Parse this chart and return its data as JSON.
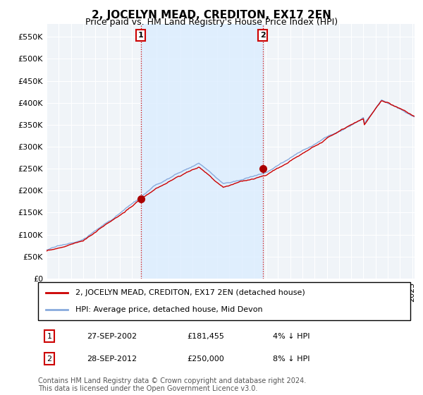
{
  "title": "2, JOCELYN MEAD, CREDITON, EX17 2EN",
  "subtitle": "Price paid vs. HM Land Registry's House Price Index (HPI)",
  "ytick_values": [
    0,
    50000,
    100000,
    150000,
    200000,
    250000,
    300000,
    350000,
    400000,
    450000,
    500000,
    550000
  ],
  "ylim": [
    0,
    580000
  ],
  "xlim_start": 1995.0,
  "xlim_end": 2025.2,
  "purchase1": {
    "date": 2002.74,
    "price": 181455,
    "label": "1",
    "hpi_diff": "4% ↓ HPI",
    "date_str": "27-SEP-2002",
    "price_str": "£181,455"
  },
  "purchase2": {
    "date": 2012.74,
    "price": 250000,
    "label": "2",
    "hpi_diff": "8% ↓ HPI",
    "date_str": "28-SEP-2012",
    "price_str": "£250,000"
  },
  "line1_color": "#cc0000",
  "line2_color": "#88aadd",
  "vline_color": "#cc0000",
  "marker_color": "#aa0000",
  "shade_color": "#ddeeff",
  "legend_label1": "2, JOCELYN MEAD, CREDITON, EX17 2EN (detached house)",
  "legend_label2": "HPI: Average price, detached house, Mid Devon",
  "footer": "Contains HM Land Registry data © Crown copyright and database right 2024.\nThis data is licensed under the Open Government Licence v3.0.",
  "background_color": "#ffffff",
  "plot_bg_color": "#f0f4f8",
  "grid_color": "#ffffff",
  "title_fontsize": 11,
  "subtitle_fontsize": 9,
  "tick_fontsize": 8,
  "legend_fontsize": 8,
  "footer_fontsize": 7
}
